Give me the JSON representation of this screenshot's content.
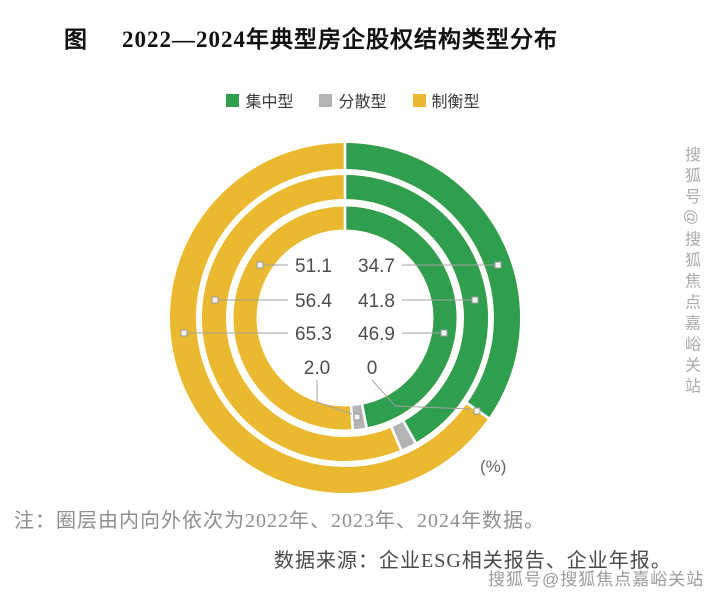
{
  "header": {
    "prefix": "图",
    "title": "2022—2024年典型房企股权结构类型分布"
  },
  "legend": {
    "items": [
      {
        "label": "集中型",
        "color": "#2f9e4f"
      },
      {
        "label": "分散型",
        "color": "#b3b3b3"
      },
      {
        "label": "制衡型",
        "color": "#eab92f"
      }
    ]
  },
  "chart_data": {
    "type": "pie",
    "variant": "concentric-multi-ring-donut",
    "title": "2022—2024年典型房企股权结构类型分布",
    "unit_label": "(%)",
    "legend_position": "top",
    "start_angle": "12 o'clock, clockwise",
    "categories": [
      "集中型",
      "分散型",
      "制衡型"
    ],
    "colors": {
      "集中型": "#2f9e4f",
      "分散型": "#b3b3b3",
      "制衡型": "#eab92f"
    },
    "rings_inner_to_outer": [
      {
        "year": "2022",
        "values": {
          "集中型": 46.9,
          "分散型": 2.0,
          "制衡型": 51.1
        }
      },
      {
        "year": "2023",
        "values": {
          "集中型": 41.8,
          "分散型": 1.8,
          "制衡型": 56.4
        }
      },
      {
        "year": "2024",
        "values": {
          "集中型": 34.7,
          "分散型": 0,
          "制衡型": 65.3
        }
      }
    ],
    "labels": {
      "left_column": [
        "51.1",
        "56.4",
        "65.3"
      ],
      "right_column": [
        "34.7",
        "41.8",
        "46.9"
      ],
      "bottom": [
        "2.0",
        "0"
      ]
    }
  },
  "note": "注：圈层由内向外依次为2022年、2023年、2024年数据。",
  "source": "数据来源：企业ESG相关报告、企业年报。",
  "watermark": {
    "vertical": "搜狐号@搜狐焦点嘉峪关站",
    "bottom": "搜狐号@搜狐焦点嘉峪关站"
  }
}
